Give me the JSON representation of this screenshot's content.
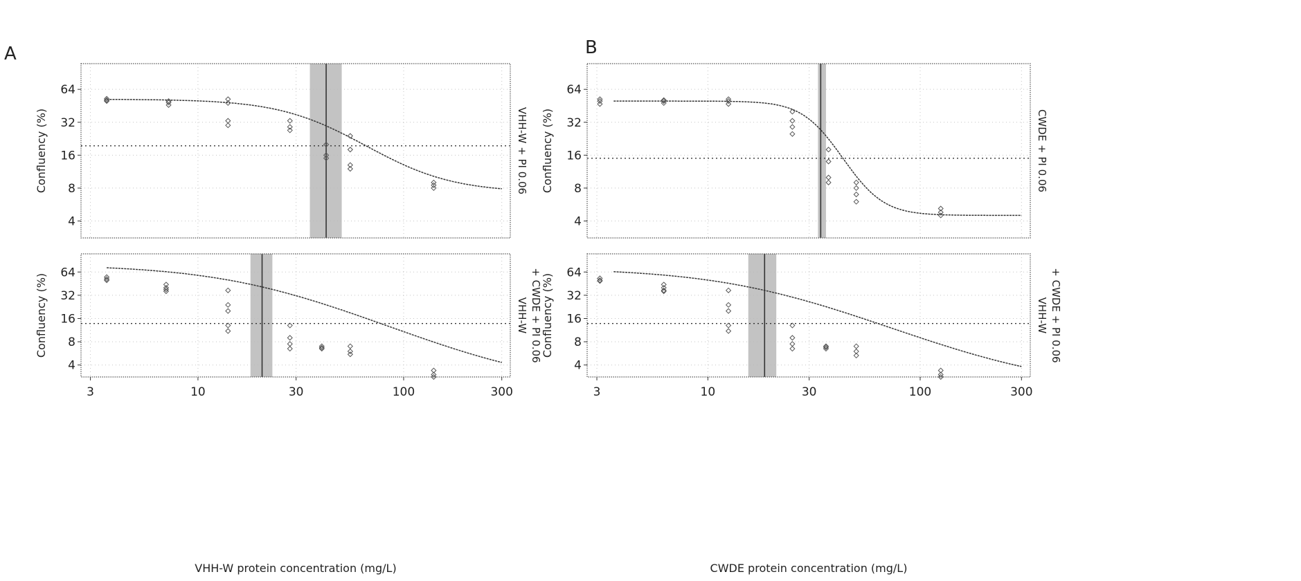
{
  "colors": {
    "curve": "#333333",
    "frame": "#555555",
    "ci_band": "#b9b9b9",
    "ec50_line": "#333333",
    "points": "#555555",
    "grid": "#c4c4c4"
  },
  "figures": [
    {
      "label": "A",
      "xlabel": "VHH-W protein concentration (mg/L)",
      "x_ticks": [
        {
          "v": 3,
          "t": "3"
        },
        {
          "v": 10,
          "t": "10"
        },
        {
          "v": 30,
          "t": "30"
        },
        {
          "v": 100,
          "t": "100"
        },
        {
          "v": 300,
          "t": "300"
        }
      ]
    },
    {
      "label": "B",
      "xlabel": "CWDE protein concentration (mg/L)",
      "x_ticks": [
        {
          "v": 3,
          "t": "3"
        },
        {
          "v": 10,
          "t": "10"
        },
        {
          "v": 30,
          "t": "30"
        },
        {
          "v": 100,
          "t": "100"
        },
        {
          "v": 300,
          "t": "300"
        }
      ]
    }
  ],
  "chart_data": [
    {
      "type": "scatter",
      "panel": "A-top",
      "title": "VHH-W + PI 0.06",
      "strip_lines": [
        "VHH-W + PI 0.06"
      ],
      "xlabel": "VHH-W protein concentration (mg/L)",
      "ylabel": "Confluency (%)",
      "xscale": "log",
      "yscale": "log",
      "xlim": [
        2.7,
        330
      ],
      "ylim": [
        2.8,
        110
      ],
      "y_ticks": [
        {
          "v": 4,
          "t": "4"
        },
        {
          "v": 8,
          "t": "8"
        },
        {
          "v": 16,
          "t": "16"
        },
        {
          "v": 32,
          "t": "32"
        },
        {
          "v": 64,
          "t": "64"
        }
      ],
      "fit": {
        "top": 52,
        "bottom": 7.3,
        "ec50": 42,
        "hill": 2.2
      },
      "ec50": 42,
      "ec50_ci": [
        35,
        50
      ],
      "half_level": 19.5,
      "points": [
        [
          3.6,
          51
        ],
        [
          3.6,
          52.5
        ],
        [
          3.6,
          50
        ],
        [
          7.2,
          50
        ],
        [
          7.2,
          46
        ],
        [
          7.2,
          48.5
        ],
        [
          14,
          52
        ],
        [
          14,
          48
        ],
        [
          14,
          33
        ],
        [
          14,
          30
        ],
        [
          28,
          33
        ],
        [
          28,
          29
        ],
        [
          28,
          27
        ],
        [
          42,
          20
        ],
        [
          42,
          16
        ],
        [
          42,
          15
        ],
        [
          55,
          24
        ],
        [
          55,
          18
        ],
        [
          55,
          13
        ],
        [
          55,
          12
        ],
        [
          140,
          9
        ],
        [
          140,
          8.5
        ],
        [
          140,
          8
        ]
      ]
    },
    {
      "type": "scatter",
      "panel": "A-bottom",
      "title": "VHH-W + CWDE + PI 0.06",
      "strip_lines": [
        "VHH-W",
        "+ CWDE + PI 0.06"
      ],
      "xlabel": "VHH-W protein concentration (mg/L)",
      "ylabel": "Confluency (%)",
      "xscale": "log",
      "yscale": "log",
      "xlim": [
        2.7,
        330
      ],
      "ylim": [
        2.8,
        110
      ],
      "y_ticks": [
        {
          "v": 4,
          "t": "4"
        },
        {
          "v": 8,
          "t": "8"
        },
        {
          "v": 16,
          "t": "16"
        },
        {
          "v": 32,
          "t": "32"
        },
        {
          "v": 64,
          "t": "64"
        }
      ],
      "fit": {
        "top": 80,
        "bottom": 2,
        "ec50": 20.5,
        "hill": 1.3
      },
      "ec50": 20.5,
      "ec50_ci": [
        18,
        23
      ],
      "half_level": 13.8,
      "points": [
        [
          3.6,
          52
        ],
        [
          3.6,
          55
        ],
        [
          3.6,
          50
        ],
        [
          7,
          44
        ],
        [
          7,
          40
        ],
        [
          7,
          38
        ],
        [
          7,
          36
        ],
        [
          14,
          37
        ],
        [
          14,
          24
        ],
        [
          14,
          20
        ],
        [
          14,
          13
        ],
        [
          14,
          11
        ],
        [
          28,
          13
        ],
        [
          28,
          9
        ],
        [
          28,
          7.5
        ],
        [
          28,
          6.5
        ],
        [
          40,
          7
        ],
        [
          40,
          6.5
        ],
        [
          40,
          6.7
        ],
        [
          55,
          7
        ],
        [
          55,
          6
        ],
        [
          55,
          5.5
        ],
        [
          140,
          3.4
        ],
        [
          140,
          3
        ],
        [
          140,
          2.8
        ]
      ]
    },
    {
      "type": "scatter",
      "panel": "B-top",
      "title": "CWDE + PI 0.06",
      "strip_lines": [
        "CWDE + PI 0.06"
      ],
      "xlabel": "CWDE protein concentration (mg/L)",
      "ylabel": "Confluency (%)",
      "xscale": "log",
      "yscale": "log",
      "xlim": [
        2.7,
        330
      ],
      "ylim": [
        2.8,
        110
      ],
      "y_ticks": [
        {
          "v": 4,
          "t": "4"
        },
        {
          "v": 8,
          "t": "8"
        },
        {
          "v": 16,
          "t": "16"
        },
        {
          "v": 32,
          "t": "32"
        },
        {
          "v": 64,
          "t": "64"
        }
      ],
      "fit": {
        "top": 50,
        "bottom": 4.5,
        "ec50": 34,
        "hill": 5
      },
      "ec50": 34,
      "ec50_ci": [
        33,
        36
      ],
      "half_level": 15,
      "points": [
        [
          3.1,
          50
        ],
        [
          3.1,
          47
        ],
        [
          3.1,
          52
        ],
        [
          6.2,
          50
        ],
        [
          6.2,
          48
        ],
        [
          6.2,
          51
        ],
        [
          12.5,
          50
        ],
        [
          12.5,
          47
        ],
        [
          12.5,
          52
        ],
        [
          25,
          40
        ],
        [
          25,
          33
        ],
        [
          25,
          29
        ],
        [
          25,
          25
        ],
        [
          37,
          18
        ],
        [
          37,
          14
        ],
        [
          37,
          10
        ],
        [
          37,
          9
        ],
        [
          50,
          9
        ],
        [
          50,
          8
        ],
        [
          50,
          6
        ],
        [
          50,
          7
        ],
        [
          125,
          5.2
        ],
        [
          125,
          4.5
        ],
        [
          125,
          4.8
        ]
      ]
    },
    {
      "type": "scatter",
      "panel": "B-bottom",
      "title": "VHH-W + CWDE + PI 0.06",
      "strip_lines": [
        "VHH-W",
        "+ CWDE + PI 0.06"
      ],
      "xlabel": "CWDE protein concentration (mg/L)",
      "ylabel": "Confluency (%)",
      "xscale": "log",
      "yscale": "log",
      "xlim": [
        2.7,
        330
      ],
      "ylim": [
        2.8,
        110
      ],
      "y_ticks": [
        {
          "v": 4,
          "t": "4"
        },
        {
          "v": 8,
          "t": "8"
        },
        {
          "v": 16,
          "t": "16"
        },
        {
          "v": 32,
          "t": "32"
        },
        {
          "v": 64,
          "t": "64"
        }
      ],
      "fit": {
        "top": 72,
        "bottom": 2,
        "ec50": 18.5,
        "hill": 1.3
      },
      "ec50": 18.5,
      "ec50_ci": [
        15.5,
        21
      ],
      "half_level": 13.8,
      "points": [
        [
          3.1,
          50
        ],
        [
          3.1,
          53
        ],
        [
          3.1,
          49
        ],
        [
          6.2,
          44
        ],
        [
          6.2,
          40
        ],
        [
          6.2,
          37
        ],
        [
          6.2,
          36
        ],
        [
          12.5,
          37
        ],
        [
          12.5,
          24
        ],
        [
          12.5,
          20
        ],
        [
          12.5,
          13
        ],
        [
          12.5,
          11
        ],
        [
          25,
          13
        ],
        [
          25,
          9
        ],
        [
          25,
          7.5
        ],
        [
          25,
          6.5
        ],
        [
          36,
          7
        ],
        [
          36,
          6.5
        ],
        [
          36,
          6.8
        ],
        [
          50,
          7
        ],
        [
          50,
          6
        ],
        [
          50,
          5.3
        ],
        [
          125,
          3.4
        ],
        [
          125,
          3
        ],
        [
          125,
          2.8
        ]
      ]
    }
  ]
}
